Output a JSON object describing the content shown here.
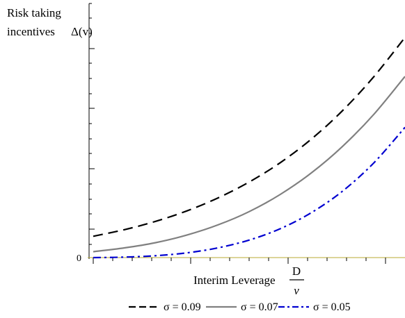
{
  "chart_data": {
    "type": "line",
    "ylabel_line1": "Risk taking",
    "ylabel_line2": "incentives",
    "ylabel_symbol": "Δ(v)",
    "xlabel": "Interim Leverage",
    "xlabel_frac_num": "D",
    "xlabel_frac_den": "v",
    "y_tick_label": "0",
    "xlim": [
      0,
      1
    ],
    "ylim": [
      0,
      1
    ],
    "x": [
      0,
      0.1,
      0.2,
      0.3,
      0.4,
      0.5,
      0.6,
      0.7,
      0.8,
      0.9,
      1.0
    ],
    "series": [
      {
        "name": "σ = 0.09",
        "style": "dashed",
        "color": "#000000",
        "values": [
          0.09,
          0.118,
          0.153,
          0.197,
          0.252,
          0.319,
          0.401,
          0.501,
          0.621,
          0.764,
          0.93
        ]
      },
      {
        "name": "σ = 0.07",
        "style": "solid",
        "color": "#808080",
        "values": [
          0.025,
          0.041,
          0.063,
          0.095,
          0.138,
          0.194,
          0.267,
          0.358,
          0.47,
          0.605,
          0.765
        ]
      },
      {
        "name": "σ = 0.05",
        "style": "dashdot",
        "color": "#0000d0",
        "values": [
          0.0,
          0.002,
          0.008,
          0.02,
          0.041,
          0.074,
          0.122,
          0.19,
          0.281,
          0.4,
          0.55
        ]
      }
    ],
    "grid": false,
    "legend_position": "bottom-center"
  }
}
